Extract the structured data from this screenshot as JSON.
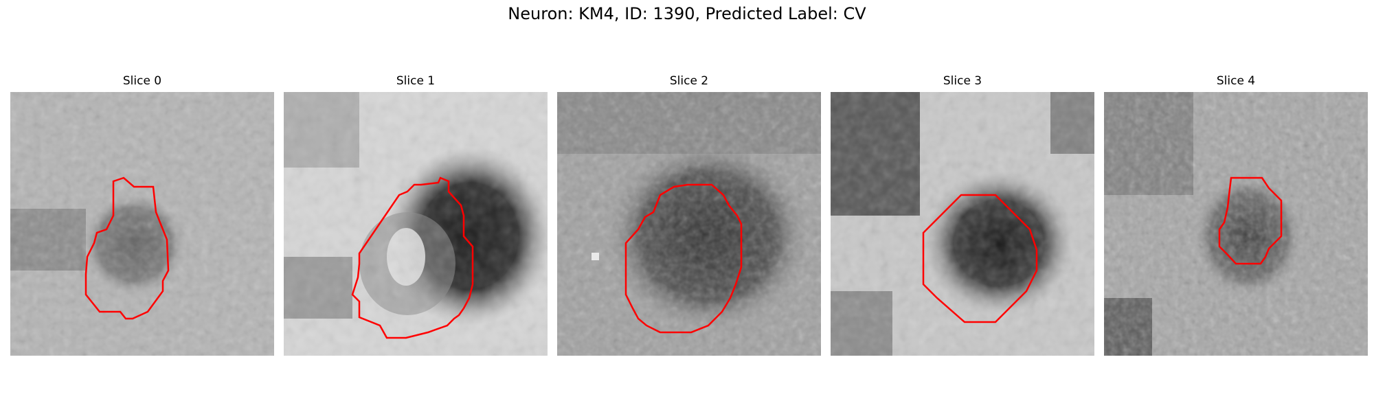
{
  "figure": {
    "title": "Neuron: KM4, ID: 1390, Predicted Label: CV"
  },
  "panels": [
    {
      "title": "Slice 0"
    },
    {
      "title": "Slice 1"
    },
    {
      "title": "Slice 2"
    },
    {
      "title": "Slice 3"
    },
    {
      "title": "Slice 4"
    }
  ],
  "colors": {
    "outline": "#ff0000",
    "background": "#ffffff"
  }
}
